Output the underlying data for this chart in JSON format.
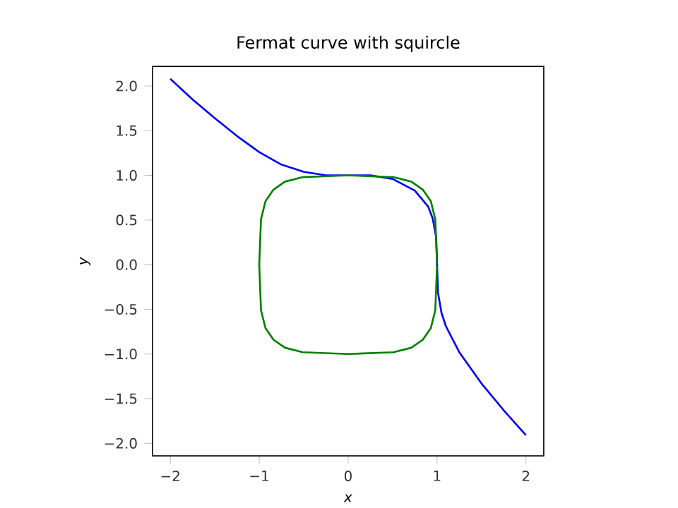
{
  "chart_data": {
    "type": "line",
    "title": "Fermat curve with squircle",
    "xlabel": "*x*",
    "ylabel": "*y*",
    "xlim": [
      -2.2,
      2.2
    ],
    "ylim": [
      -2.14,
      2.22
    ],
    "xticks": [
      {
        "value": -2,
        "label": "−2"
      },
      {
        "value": -1,
        "label": "−1"
      },
      0,
      1,
      2
    ],
    "yticks": [
      {
        "value": -2,
        "label": "−2.0"
      },
      {
        "value": -1.5,
        "label": "−1.5"
      },
      {
        "value": -1,
        "label": "−1.0"
      },
      {
        "value": -0.5,
        "label": "−0.5"
      },
      {
        "value": 0,
        "label": "0.0"
      },
      {
        "value": 0.5,
        "label": "0.5"
      },
      {
        "value": 1,
        "label": "1.0"
      },
      {
        "value": 1.5,
        "label": "1.5"
      },
      {
        "value": 2,
        "label": "2.0"
      }
    ],
    "grid": false,
    "series": [
      {
        "color": "#0000ff",
        "x": [
          -2,
          -1.75,
          -1.5,
          -1.25,
          -1,
          -0.75,
          -0.5,
          -0.25,
          0,
          0.25,
          0.5,
          0.75,
          0.9,
          0.95,
          0.99,
          1,
          1.01,
          1.05,
          1.1,
          1.25,
          1.5,
          1.75,
          2
        ],
        "values": [
          2.08,
          1.85,
          1.64,
          1.44,
          1.26,
          1.12,
          1.04,
          1.0,
          1,
          1.0,
          0.96,
          0.83,
          0.65,
          0.52,
          0.31,
          0,
          -0.31,
          -0.54,
          -0.69,
          -0.98,
          -1.33,
          -1.63,
          -1.91
        ]
      },
      {
        "color": "#008000",
        "x": [
          1,
          0.98,
          0.93,
          0.84,
          0.71,
          0.51,
          0,
          -0.51,
          -0.71,
          -0.84,
          -0.93,
          -0.98,
          -1,
          -0.98,
          -0.93,
          -0.84,
          -0.71,
          -0.51,
          0,
          0.51,
          0.71,
          0.84,
          0.93,
          0.98,
          1
        ],
        "values": [
          0.01,
          0.51,
          0.71,
          0.84,
          0.93,
          0.98,
          1,
          0.98,
          0.93,
          0.84,
          0.71,
          0.51,
          0,
          -0.51,
          -0.71,
          -0.84,
          -0.93,
          -0.98,
          -1,
          -0.98,
          -0.93,
          -0.84,
          -0.71,
          -0.51,
          -0.01
        ]
      }
    ]
  }
}
